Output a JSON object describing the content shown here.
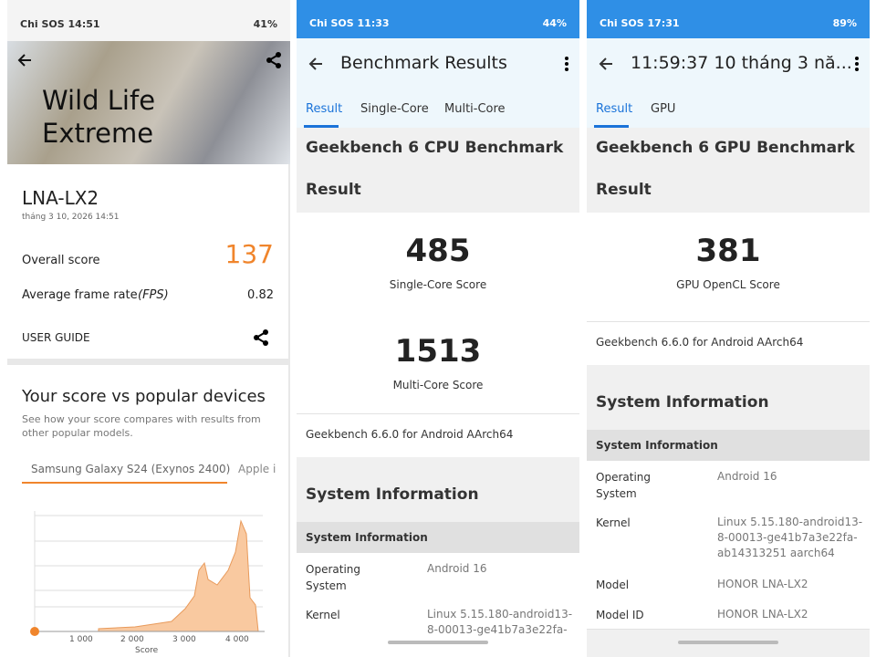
{
  "panels": [
    {
      "status": {
        "left": "Chi SOS 14:51",
        "battery": "41%"
      },
      "header": {
        "title": "Wild Life Extreme"
      },
      "device": {
        "name": "LNA-LX2",
        "date": "tháng 3 10, 2026 14:51"
      },
      "overall": {
        "label": "Overall score",
        "value": "137"
      },
      "framerate": {
        "label": "Average frame rate",
        "unit": "(FPS)",
        "value": "0.82"
      },
      "user_guide": "USER GUIDE",
      "compare": {
        "title": "Your score vs popular devices",
        "text": "See how your score compares with results from other popular models.",
        "tabs": [
          "Samsung Galaxy S24 (Exynos 2400)",
          "Apple i"
        ],
        "axis_labels": [
          "1 000",
          "2 000",
          "3 000",
          "4 000"
        ],
        "axis_title": "Score"
      }
    },
    {
      "status": {
        "left": "Chi SOS 11:33",
        "battery": "44%"
      },
      "toolbar": "Benchmark Results",
      "tabs": [
        "Result",
        "Single-Core",
        "Multi-Core"
      ],
      "section": {
        "title": "Geekbench 6 CPU Benchmark",
        "subtitle": "Result"
      },
      "scores": [
        {
          "value": "485",
          "label": "Single-Core Score"
        },
        {
          "value": "1513",
          "label": "Multi-Core Score"
        }
      ],
      "version": "Geekbench 6.6.0 for Android AArch64",
      "sysinfo": {
        "title": "System Information",
        "header": "System Information",
        "rows": [
          [
            "Operating System",
            "Android 16"
          ],
          [
            "Kernel",
            "Linux 5.15.180-android13-8-00013-ge41b7a3e22fa-"
          ]
        ]
      }
    },
    {
      "status": {
        "left": "Chi SOS 17:31",
        "battery": "89%"
      },
      "toolbar": "11:59:37 10 tháng 3 nă...",
      "tabs": [
        "Result",
        "GPU"
      ],
      "section": {
        "title": "Geekbench 6 GPU Benchmark",
        "subtitle": "Result"
      },
      "scores": [
        {
          "value": "381",
          "label": "GPU OpenCL Score"
        }
      ],
      "version": "Geekbench 6.6.0 for Android AArch64",
      "sysinfo": {
        "title": "System Information",
        "header": "System Information",
        "rows": [
          [
            "Operating System",
            "Android 16"
          ],
          [
            "Kernel",
            "Linux 5.15.180-android13-8-00013-ge41b7a3e22fa-ab14313251 aarch64"
          ],
          [
            "Model",
            "HONOR LNA-LX2"
          ],
          [
            "Model ID",
            "HONOR LNA-LX2"
          ]
        ]
      }
    }
  ]
}
